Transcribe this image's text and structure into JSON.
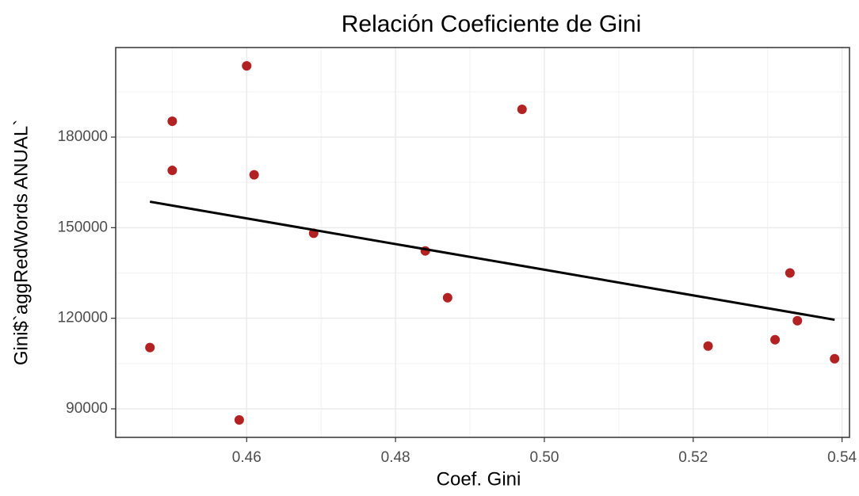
{
  "chart_data": {
    "type": "scatter",
    "title": "Relación Coeficiente de Gini",
    "x_label": "Coef. Gini",
    "y_label": "Gini$`aggRedWords ANUAL`",
    "series": [
      {
        "color": "#b22222",
        "x": [
          0.447,
          0.45,
          0.45,
          0.459,
          0.46,
          0.461,
          0.469,
          0.484,
          0.487,
          0.497,
          0.522,
          0.531,
          0.533,
          0.534,
          0.539
        ],
        "values": [
          110300,
          185250,
          168970,
          86330,
          203600,
          167500,
          148160,
          142300,
          126800,
          189200,
          110800,
          112900,
          135000,
          119200,
          106600
        ]
      }
    ],
    "trend": {
      "color": "#000000",
      "x": [
        0.447,
        0.539
      ],
      "y": [
        158600,
        119500
      ]
    },
    "xlim": [
      0.4424,
      0.541
    ],
    "ylim": [
      80550,
      209660
    ],
    "xticks": [
      0.46,
      0.48,
      {
        "value": 0.5,
        "label": "0.50"
      },
      0.52,
      0.54
    ],
    "yticks": [
      90000,
      120000,
      150000,
      180000
    ],
    "grid": true
  }
}
